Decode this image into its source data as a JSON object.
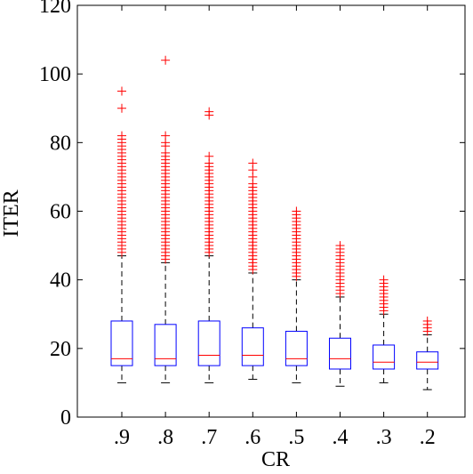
{
  "chart_data": {
    "type": "box",
    "xlabel": "CR",
    "ylabel": "ITER",
    "ylim": [
      0,
      120
    ],
    "yticks": [
      0,
      20,
      40,
      60,
      80,
      100,
      120
    ],
    "categories": [
      ".9",
      ".8",
      ".7",
      ".6",
      ".5",
      ".4",
      ".3",
      ".2"
    ],
    "grid": false,
    "legend": "none",
    "boxes": [
      {
        "label": ".9",
        "whisker_low": 10,
        "q1": 15,
        "median": 17,
        "q3": 28,
        "whisker_high": 47,
        "outliers": [
          48,
          49,
          50,
          51,
          52,
          53,
          54,
          55,
          56,
          57,
          58,
          59,
          60,
          61,
          62,
          63,
          64,
          65,
          66,
          67,
          68,
          69,
          70,
          71,
          72,
          73,
          74,
          75,
          76,
          77,
          78,
          79,
          80,
          81,
          82,
          90,
          95
        ]
      },
      {
        "label": ".8",
        "whisker_low": 10,
        "q1": 15,
        "median": 17,
        "q3": 27,
        "whisker_high": 45,
        "outliers": [
          46,
          47,
          48,
          49,
          50,
          51,
          52,
          53,
          54,
          55,
          56,
          57,
          58,
          59,
          60,
          61,
          62,
          63,
          64,
          65,
          66,
          67,
          68,
          69,
          70,
          71,
          72,
          73,
          74,
          75,
          76,
          77,
          79,
          80,
          82,
          104
        ]
      },
      {
        "label": ".7",
        "whisker_low": 10,
        "q1": 15,
        "median": 18,
        "q3": 28,
        "whisker_high": 47,
        "outliers": [
          48,
          49,
          50,
          51,
          52,
          53,
          54,
          55,
          56,
          57,
          58,
          59,
          60,
          61,
          62,
          63,
          64,
          65,
          66,
          67,
          68,
          69,
          70,
          71,
          72,
          73,
          74,
          76,
          88,
          89
        ]
      },
      {
        "label": ".6",
        "whisker_low": 11,
        "q1": 15,
        "median": 18,
        "q3": 26,
        "whisker_high": 42,
        "outliers": [
          43,
          44,
          45,
          46,
          47,
          48,
          49,
          50,
          51,
          52,
          53,
          54,
          55,
          56,
          57,
          58,
          59,
          60,
          61,
          62,
          63,
          64,
          65,
          66,
          67,
          68,
          70,
          72,
          74
        ]
      },
      {
        "label": ".5",
        "whisker_low": 10,
        "q1": 15,
        "median": 17,
        "q3": 25,
        "whisker_high": 40,
        "outliers": [
          41,
          42,
          43,
          44,
          45,
          46,
          47,
          48,
          49,
          50,
          51,
          52,
          53,
          54,
          55,
          56,
          57,
          58,
          59,
          60
        ]
      },
      {
        "label": ".4",
        "whisker_low": 9,
        "q1": 14,
        "median": 17,
        "q3": 23,
        "whisker_high": 35,
        "outliers": [
          36,
          37,
          38,
          39,
          40,
          41,
          42,
          43,
          44,
          45,
          46,
          47,
          48,
          49,
          50
        ]
      },
      {
        "label": ".3",
        "whisker_low": 10,
        "q1": 14,
        "median": 16,
        "q3": 21,
        "whisker_high": 30,
        "outliers": [
          31,
          32,
          33,
          34,
          35,
          36,
          37,
          38,
          39,
          40
        ]
      },
      {
        "label": ".2",
        "whisker_low": 8,
        "q1": 14,
        "median": 16,
        "q3": 19,
        "whisker_high": 24,
        "outliers": [
          25,
          26,
          27,
          28
        ]
      }
    ]
  },
  "colors": {
    "box": "#0000ff",
    "median": "#ff0000",
    "outlier": "#ff0000",
    "whisker": "#000000",
    "axes": "#000000"
  }
}
